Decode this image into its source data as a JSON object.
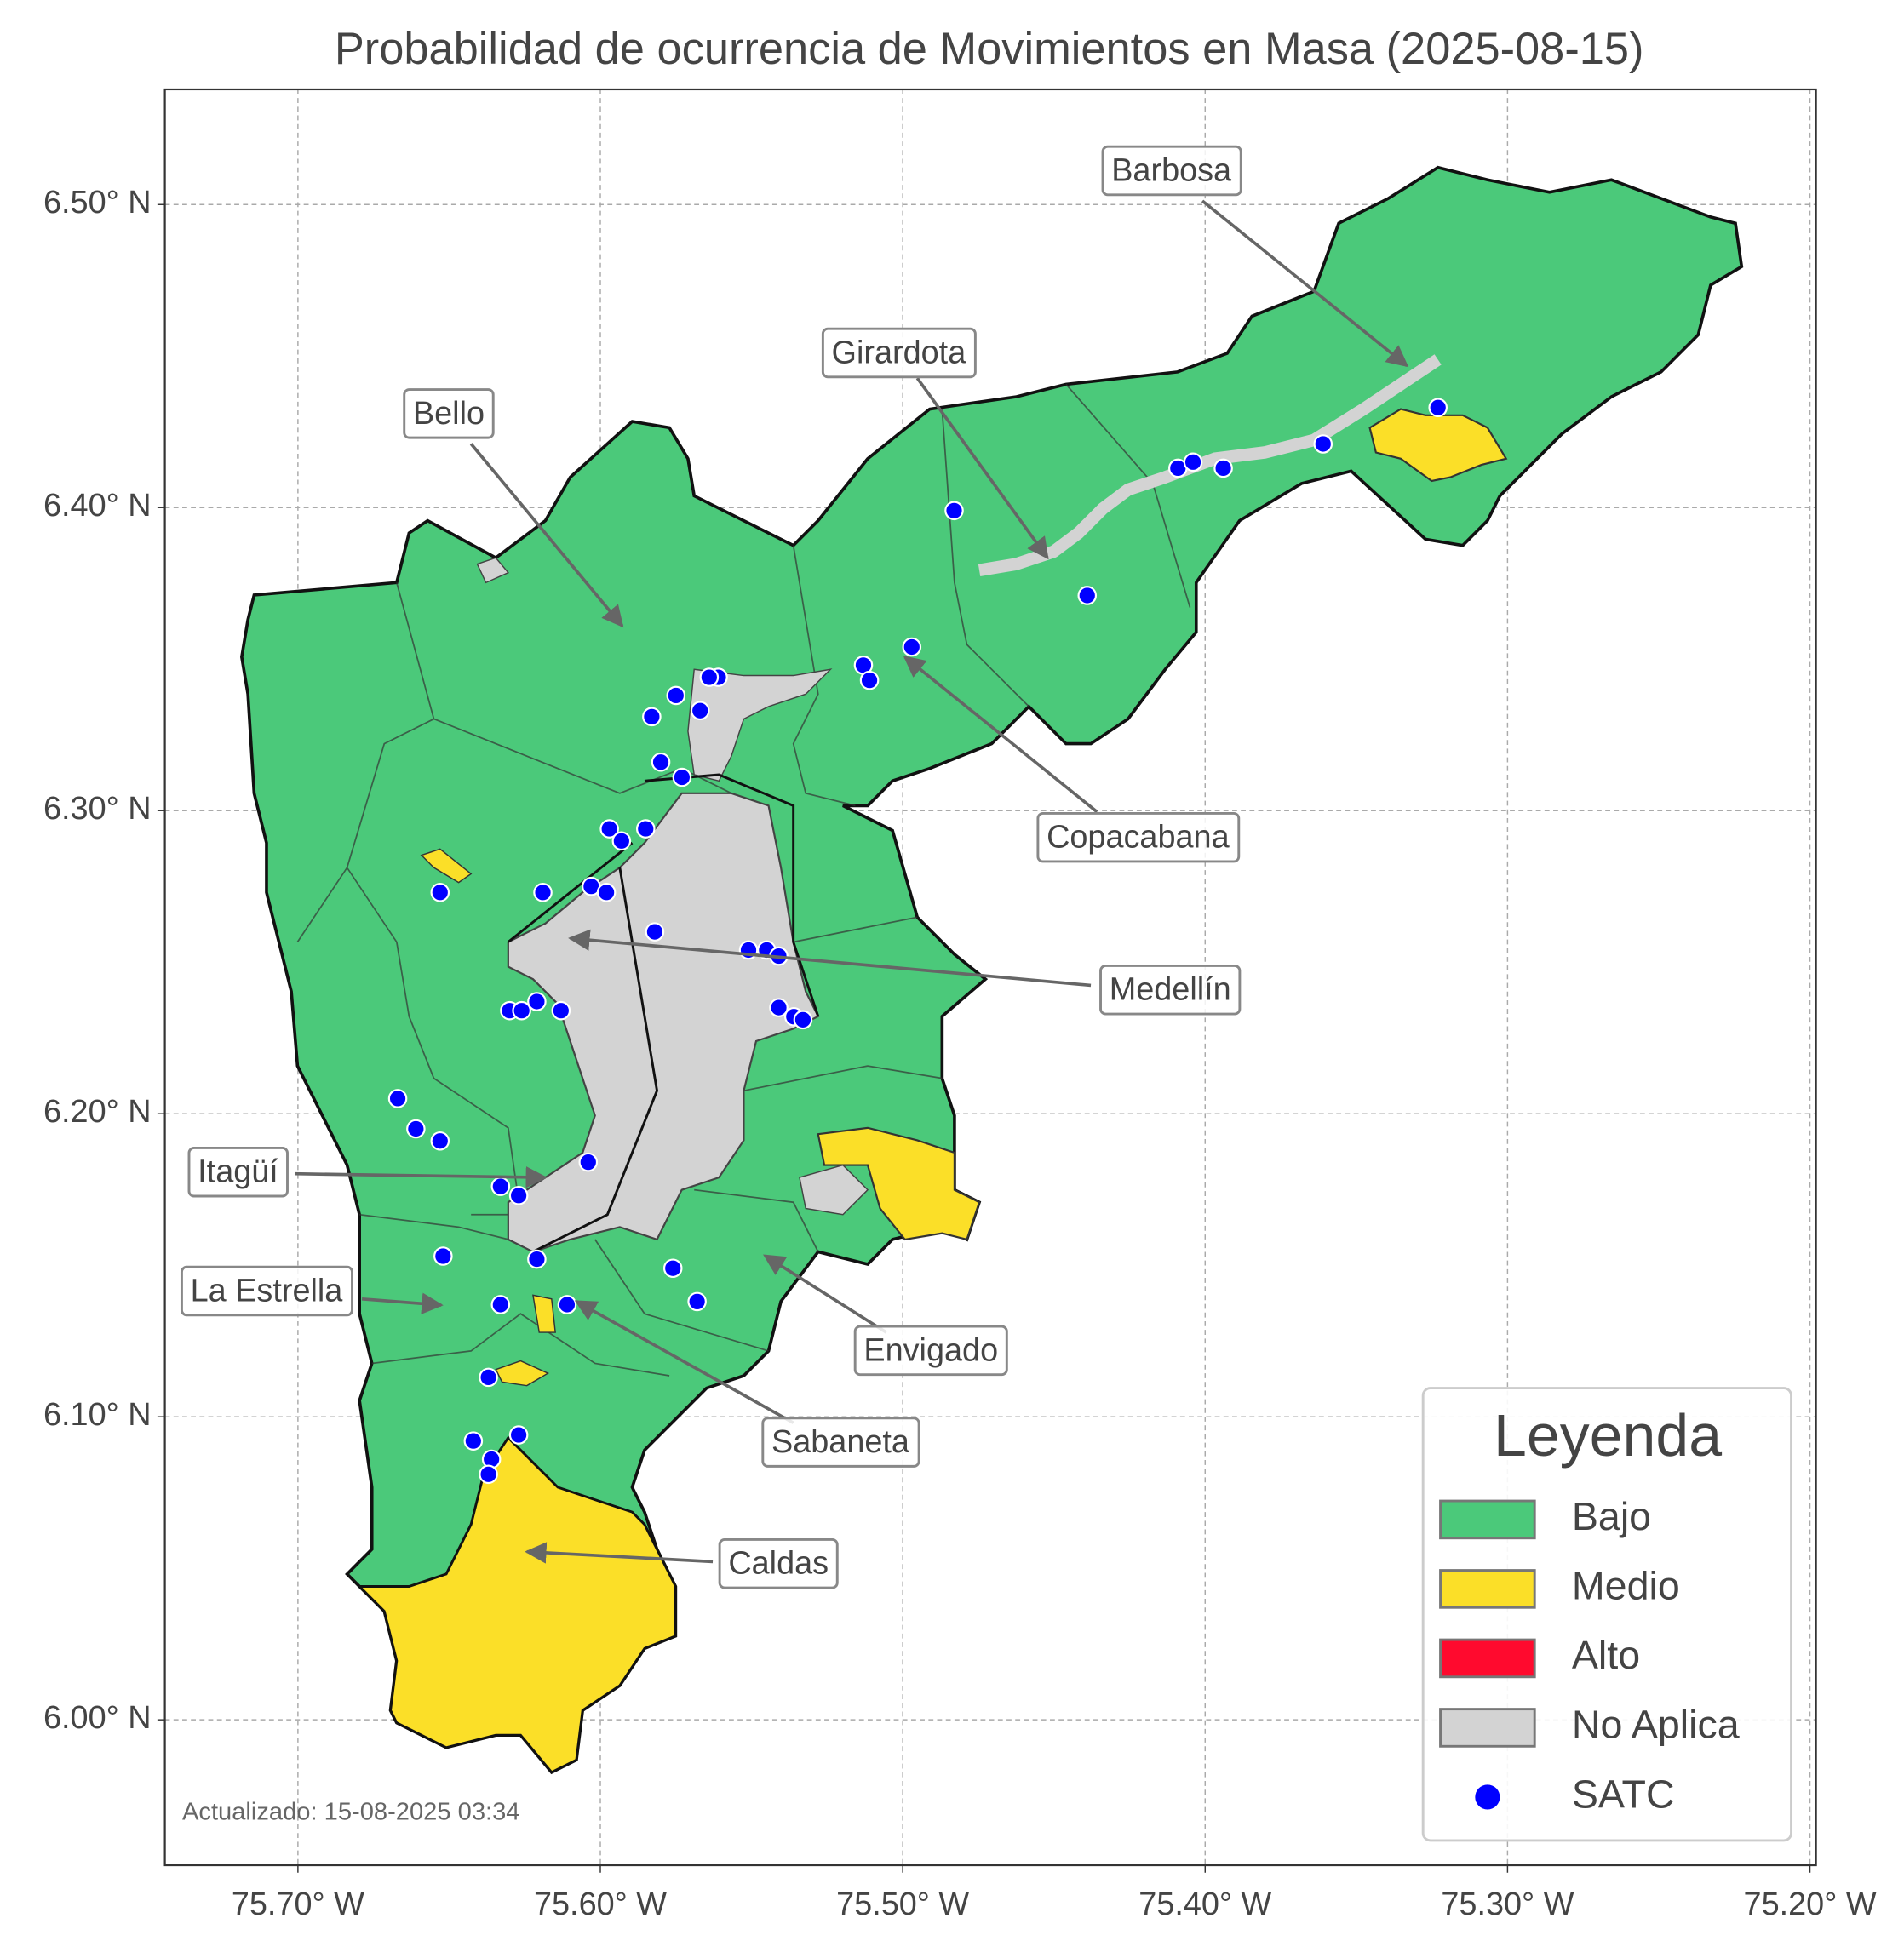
{
  "title": "Probabilidad de ocurrencia de Movimientos en Masa (2025-08-15)",
  "map": {
    "xlim": [
      -75.744,
      -75.198
    ],
    "ylim": [
      5.952,
      6.538
    ],
    "grid": true,
    "xticks": [
      {
        "value": -75.7,
        "label": "75.70° W"
      },
      {
        "value": -75.6,
        "label": "75.60° W"
      },
      {
        "value": -75.5,
        "label": "75.50° W"
      },
      {
        "value": -75.4,
        "label": "75.40° W"
      },
      {
        "value": -75.3,
        "label": "75.30° W"
      },
      {
        "value": -75.2,
        "label": "75.20° W"
      }
    ],
    "yticks": [
      {
        "value": 6.0,
        "label": "6.00° N"
      },
      {
        "value": 6.1,
        "label": "6.10° N"
      },
      {
        "value": 6.2,
        "label": "6.20° N"
      },
      {
        "value": 6.3,
        "label": "6.30° N"
      },
      {
        "value": 6.4,
        "label": "6.40° N"
      },
      {
        "value": 6.5,
        "label": "6.50° N"
      }
    ]
  },
  "annotations": [
    "Barbosa",
    "Girardota",
    "Bello",
    "Copacabana",
    "Medellín",
    "Itagüí",
    "La Estrella",
    "Envigado",
    "Sabaneta",
    "Caldas"
  ],
  "legend": {
    "title": "Leyenda",
    "items": [
      {
        "label": "Bajo",
        "color": "#4bc97a"
      },
      {
        "label": "Medio",
        "color": "#fbdf28"
      },
      {
        "label": "Alto",
        "color": "#ff0a2e"
      },
      {
        "label": "No Aplica",
        "color": "#d3d3d3"
      }
    ]
  },
  "satc": {
    "name": "SATC",
    "color": "#0000ff",
    "lon": [
      -75.323,
      -75.361,
      -75.409,
      -75.404,
      -75.394,
      -75.483,
      -75.439,
      -75.497,
      -75.513,
      -75.511,
      -75.561,
      -75.564,
      -75.575,
      -75.583,
      -75.567,
      -75.58,
      -75.573,
      -75.597,
      -75.593,
      -75.585,
      -75.653,
      -75.619,
      -75.603,
      -75.598,
      -75.582,
      -75.551,
      -75.545,
      -75.541,
      -75.63,
      -75.626,
      -75.621,
      -75.613,
      -75.541,
      -75.536,
      -75.533,
      -75.667,
      -75.661,
      -75.653,
      -75.604,
      -75.633,
      -75.627,
      -75.652,
      -75.621,
      -75.576,
      -75.568,
      -75.633,
      -75.611,
      -75.637,
      -75.642,
      -75.627,
      -75.636,
      -75.637
    ],
    "lat": [
      6.433,
      6.421,
      6.413,
      6.415,
      6.413,
      6.399,
      6.371,
      6.354,
      6.348,
      6.343,
      6.344,
      6.344,
      6.338,
      6.331,
      6.333,
      6.316,
      6.311,
      6.294,
      6.29,
      6.294,
      6.273,
      6.273,
      6.275,
      6.273,
      6.26,
      6.254,
      6.254,
      6.252,
      6.234,
      6.234,
      6.237,
      6.234,
      6.235,
      6.232,
      6.231,
      6.205,
      6.195,
      6.191,
      6.184,
      6.176,
      6.173,
      6.153,
      6.152,
      6.149,
      6.138,
      6.137,
      6.137,
      6.113,
      6.092,
      6.094,
      6.086,
      6.081
    ]
  },
  "footnote": "Actualizado: 15-08-2025 03:34"
}
